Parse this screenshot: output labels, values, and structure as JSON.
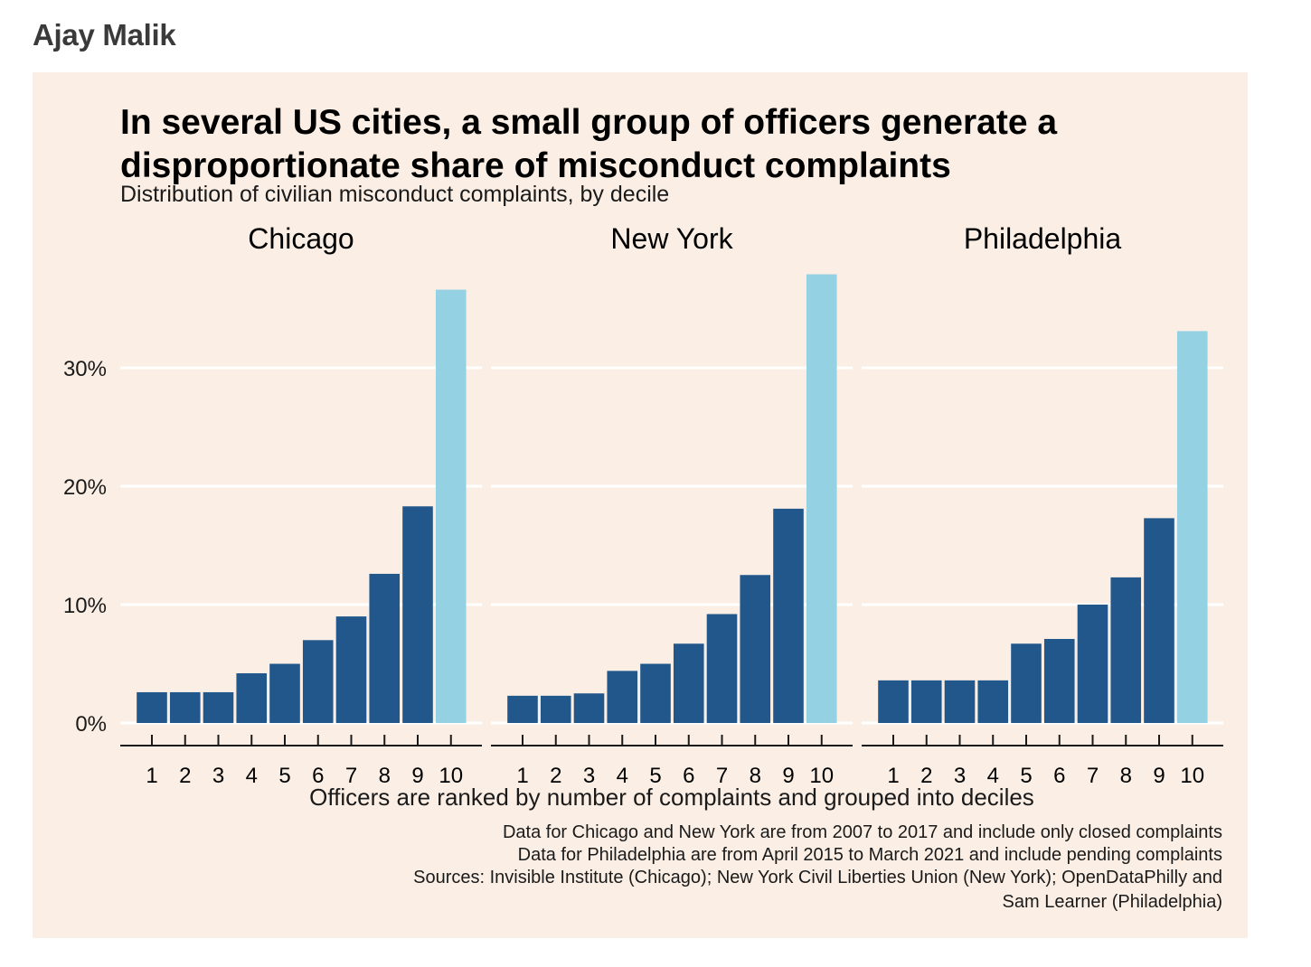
{
  "author": "Ajay Malik",
  "chart_data": {
    "type": "bar",
    "title_lines": [
      "In several US cities, a small group of officers generate a",
      "disproportionate share of misconduct complaints"
    ],
    "subtitle": "Distribution of civilian misconduct complaints, by decile",
    "xlabel": "Officers are ranked by number of complaints and grouped into deciles",
    "ylabel": "",
    "categories": [
      "1",
      "2",
      "3",
      "4",
      "5",
      "6",
      "7",
      "8",
      "9",
      "10"
    ],
    "ylim": [
      0,
      38
    ],
    "yticks": [
      0,
      10,
      20,
      30
    ],
    "ytick_labels": [
      "0%",
      "10%",
      "20%",
      "30%"
    ],
    "grid": "horizontal",
    "colors": {
      "base": "#22578c",
      "highlight": "#93d1e3",
      "background": "#fbefe5",
      "grid": "#ffffff"
    },
    "facets": [
      {
        "name": "Chicago",
        "values": [
          2.6,
          2.6,
          2.6,
          4.2,
          5.0,
          7.0,
          9.0,
          12.6,
          18.3,
          36.6
        ]
      },
      {
        "name": "New York",
        "values": [
          2.3,
          2.3,
          2.5,
          4.4,
          5.0,
          6.7,
          9.2,
          12.5,
          18.1,
          37.9
        ]
      },
      {
        "name": "Philadelphia",
        "values": [
          3.6,
          3.6,
          3.6,
          3.6,
          6.7,
          7.1,
          10.0,
          12.3,
          17.3,
          33.1
        ]
      }
    ],
    "caption_lines": [
      "Data for Chicago and New York are from 2007 to 2017 and include only closed complaints",
      "Data for Philadelphia are from April 2015 to March 2021 and include pending complaints",
      "Sources: Invisible Institute (Chicago); New York Civil Liberties Union (New York); OpenDataPhilly and",
      "Sam Learner (Philadelphia)"
    ]
  }
}
